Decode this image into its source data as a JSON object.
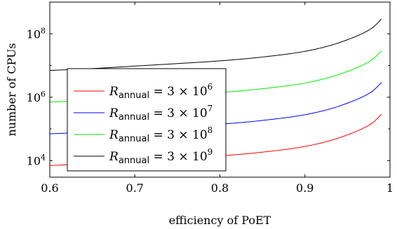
{
  "chart_data": {
    "type": "line",
    "xlabel": "efficiency of PoET",
    "ylabel": "number of CPUs",
    "xlim": [
      0.6,
      1.0
    ],
    "ylim": [
      3000,
      1000000000
    ],
    "y_scale": "log",
    "grid": false,
    "legend_position": "bottom-left",
    "x_ticks": [
      {
        "value": 0.6,
        "label": "0.6"
      },
      {
        "value": 0.7,
        "label": "0.7"
      },
      {
        "value": 0.8,
        "label": "0.8"
      },
      {
        "value": 0.9,
        "label": "0.9"
      },
      {
        "value": 1.0,
        "label": "1"
      }
    ],
    "y_ticks": [
      {
        "value": 10000,
        "base": "10",
        "exp": "4"
      },
      {
        "value": 1000000,
        "base": "10",
        "exp": "6"
      },
      {
        "value": 100000000,
        "base": "10",
        "exp": "8"
      }
    ],
    "x": [
      0.6,
      0.65,
      0.7,
      0.75,
      0.8,
      0.85,
      0.9,
      0.93,
      0.95,
      0.97,
      0.98,
      0.99
    ],
    "series": [
      {
        "name_main": "R",
        "name_sub": "annual",
        "name_rhs": " = 3 × 10",
        "name_exp": "6",
        "color": "#ff0000",
        "values": [
          7000,
          8000,
          9600,
          11500,
          14000,
          18500,
          28000,
          43000,
          65000,
          110000,
          160000,
          290000
        ]
      },
      {
        "name_main": "R",
        "name_sub": "annual",
        "name_rhs": " = 3 × 10",
        "name_exp": "7",
        "color": "#0000ff",
        "values": [
          70000,
          80000,
          96000,
          115000,
          140000,
          185000,
          280000,
          430000,
          650000,
          1100000,
          1600000,
          2900000
        ]
      },
      {
        "name_main": "R",
        "name_sub": "annual",
        "name_rhs": " = 3 × 10",
        "name_exp": "8",
        "color": "#00ee00",
        "values": [
          700000,
          800000,
          960000,
          1150000,
          1400000,
          1850000,
          2800000,
          4300000,
          6500000,
          11000000,
          16000000,
          29000000
        ]
      },
      {
        "name_main": "R",
        "name_sub": "annual",
        "name_rhs": " = 3 × 10",
        "name_exp": "9",
        "color": "#000000",
        "values": [
          7000000,
          8000000,
          9600000,
          11500000,
          14000000,
          18500000,
          28000000,
          43000000,
          65000000,
          110000000,
          160000000,
          290000000
        ]
      }
    ]
  }
}
